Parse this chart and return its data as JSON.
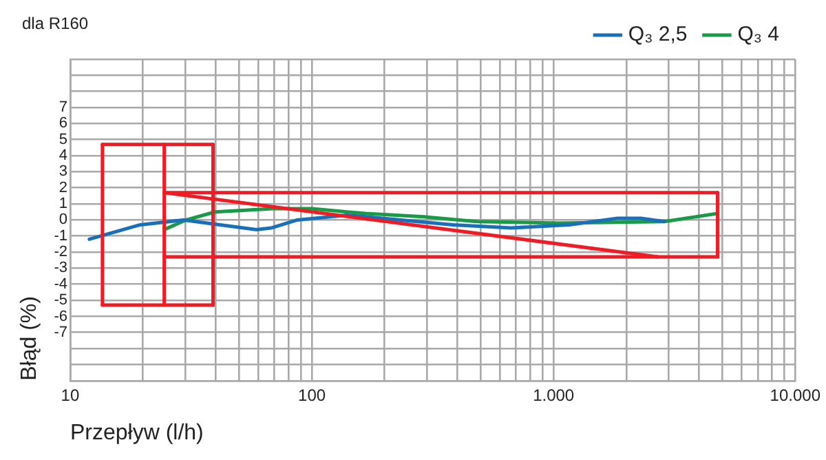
{
  "chart_data": {
    "type": "line",
    "title": "dla R160",
    "xlabel": "Przepływ (l/h)",
    "ylabel": "Błąd (%)",
    "log": "x",
    "grid": true,
    "legend": "top right",
    "line_style": "solid",
    "xlim": [
      10,
      10000
    ],
    "xticks": [
      10,
      {
        "value": 20,
        "label": null
      },
      {
        "value": 30,
        "label": null
      },
      {
        "value": 40,
        "label": null
      },
      {
        "value": 50,
        "label": null
      },
      {
        "value": 60,
        "label": null
      },
      {
        "value": 70,
        "label": null
      },
      {
        "value": 80,
        "label": null
      },
      {
        "value": 90,
        "label": null
      },
      100,
      {
        "value": 200,
        "label": null
      },
      {
        "value": 300,
        "label": null
      },
      {
        "value": 400,
        "label": null
      },
      {
        "value": 500,
        "label": null
      },
      {
        "value": 600,
        "label": null
      },
      {
        "value": 700,
        "label": null
      },
      {
        "value": 800,
        "label": null
      },
      {
        "value": 900,
        "label": null
      },
      {
        "value": 1000,
        "label": "1.000"
      },
      {
        "value": 2000,
        "label": null
      },
      {
        "value": 3000,
        "label": null
      },
      {
        "value": 4000,
        "label": null
      },
      {
        "value": 5000,
        "label": null
      },
      {
        "value": 6000,
        "label": null
      },
      {
        "value": 7000,
        "label": null
      },
      {
        "value": 8000,
        "label": null
      },
      {
        "value": 9000,
        "label": null
      },
      {
        "value": 10000,
        "label": "10.000"
      }
    ],
    "ylim": [
      -10,
      10
    ],
    "yticks": [
      {
        "value": -10,
        "label": null
      },
      {
        "value": -9,
        "label": null
      },
      {
        "value": -8,
        "label": null
      },
      -7,
      -6,
      -5,
      -4,
      -3,
      -2,
      -1,
      0,
      1,
      2,
      3,
      4,
      5,
      6,
      7,
      {
        "value": 8,
        "label": null
      },
      {
        "value": 9,
        "label": null
      },
      {
        "value": 10,
        "label": null
      }
    ],
    "series": [
      {
        "color": "#ee1c25",
        "x": [
          13.6,
          39
        ],
        "values": [
          4.7,
          4.7
        ]
      },
      {
        "color": "#ee1c25",
        "x": [
          13.6,
          39
        ],
        "values": [
          -5.3,
          -5.3
        ]
      },
      {
        "color": "#ee1c25",
        "x": [
          13.6,
          13.6
        ],
        "values": [
          4.7,
          -5.3
        ]
      },
      {
        "color": "#ee1c25",
        "x": [
          24.5,
          24.5
        ],
        "values": [
          4.7,
          -5.3
        ]
      },
      {
        "color": "#ee1c25",
        "x": [
          39,
          39
        ],
        "values": [
          4.7,
          -5.3
        ]
      },
      {
        "color": "#ee1c25",
        "x": [
          24.5,
          4770
        ],
        "values": [
          1.7,
          1.7
        ]
      },
      {
        "color": "#ee1c25",
        "x": [
          24.5,
          4770
        ],
        "values": [
          -2.3,
          -2.3
        ]
      },
      {
        "color": "#ee1c25",
        "x": [
          4770,
          4770
        ],
        "values": [
          1.7,
          -2.3
        ]
      },
      {
        "color": "#ee1c25",
        "x": [
          24.5,
          2700
        ],
        "values": [
          1.7,
          -2.3
        ]
      },
      {
        "name": "Q₃ 2,5",
        "color": "#1a70b8",
        "x": [
          12,
          19.5,
          29.5,
          41.7,
          59,
          67.8,
          87,
          139,
          167,
          383,
          667,
          1160,
          1840,
          2300,
          2870
        ],
        "values": [
          -1.2,
          -0.3,
          0,
          -0.3,
          -0.6,
          -0.5,
          0,
          0.3,
          0.2,
          -0.3,
          -0.5,
          -0.3,
          0.1,
          0.1,
          -0.1
        ]
      },
      {
        "name": "Q₃ 4",
        "color": "#1a9a48",
        "x": [
          24.5,
          30.2,
          39.8,
          69,
          100,
          167,
          290,
          480,
          1060,
          2870,
          4770
        ],
        "values": [
          -0.6,
          0,
          0.5,
          0.7,
          0.7,
          0.4,
          0.2,
          -0.1,
          -0.2,
          -0.1,
          0.4
        ]
      }
    ]
  }
}
